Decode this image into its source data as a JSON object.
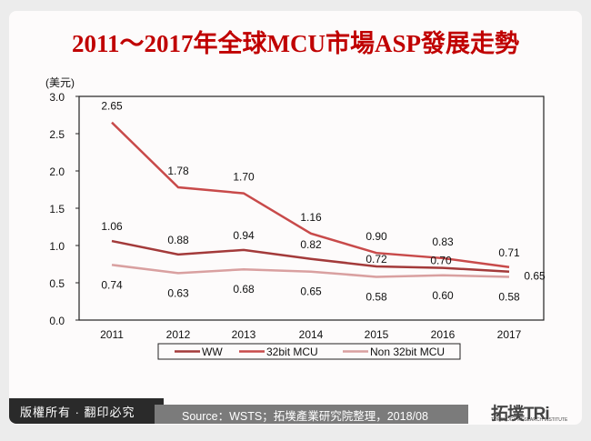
{
  "title": "2011～2017年全球MCU市場ASP發展走勢",
  "colors": {
    "title": "#c00000",
    "ww": "#a33a3a",
    "mcu32": "#c84a4a",
    "non32": "#d9a0a0"
  },
  "chart_data": {
    "type": "line",
    "title": "2011～2017年全球MCU市場ASP發展走勢",
    "xlabel": "",
    "ylabel": "(美元)",
    "ylim": [
      0,
      3.0
    ],
    "yticks": [
      "0.0",
      "0.5",
      "1.0",
      "1.5",
      "2.0",
      "2.5",
      "3.0"
    ],
    "categories": [
      "2011",
      "2012",
      "2013",
      "2014",
      "2015",
      "2016",
      "2017"
    ],
    "series": [
      {
        "name": "WW",
        "values": [
          1.06,
          0.88,
          0.94,
          0.82,
          0.72,
          0.7,
          0.65
        ]
      },
      {
        "name": "32bit MCU",
        "values": [
          2.65,
          1.78,
          1.7,
          1.16,
          0.9,
          0.83,
          0.71
        ]
      },
      {
        "name": "Non 32bit MCU",
        "values": [
          0.74,
          0.63,
          0.68,
          0.65,
          0.58,
          0.6,
          0.58
        ]
      }
    ],
    "grid": false,
    "legend_position": "bottom"
  },
  "legend": [
    "WW",
    "32bit MCU",
    "Non 32bit MCU"
  ],
  "footer": {
    "copyright": "版權所有 · 翻印必究",
    "source": "Source：WSTS；拓墣產業研究院整理，2018/08",
    "logo": "拓墣TRi",
    "logo_sub": "TOPOLOGY RESEARCH INSTITUTE"
  }
}
